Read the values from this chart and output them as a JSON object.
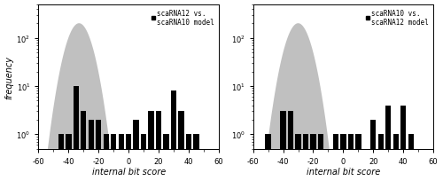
{
  "left_panel": {
    "title_line1": "scaRNA12 vs.",
    "title_line2": "scaRNA10 model",
    "bar_centers": [
      -45,
      -40,
      -35,
      -30,
      -25,
      -20,
      -15,
      -10,
      -5,
      0,
      5,
      10,
      15,
      20,
      25,
      30,
      35,
      40,
      45
    ],
    "bar_values": [
      1,
      1,
      10,
      3,
      2,
      2,
      1,
      1,
      1,
      1,
      2,
      1,
      3,
      3,
      1,
      8,
      3,
      1,
      1
    ],
    "gray_peak": -33,
    "gray_sigma": 6,
    "gray_amplitude": 200
  },
  "right_panel": {
    "title_line1": "scaRNA10 vs.",
    "title_line2": "scaRNA12 model",
    "bar_centers": [
      -50,
      -40,
      -35,
      -30,
      -25,
      -20,
      -15,
      -5,
      0,
      5,
      10,
      20,
      25,
      30,
      35,
      40,
      45
    ],
    "bar_values": [
      1,
      3,
      3,
      1,
      1,
      1,
      1,
      1,
      1,
      1,
      1,
      2,
      1,
      4,
      1,
      4,
      1
    ],
    "gray_peak": -30,
    "gray_sigma": 6,
    "gray_amplitude": 200
  },
  "ylabel": "frequency",
  "xlabel": "internal bit score",
  "xlim": [
    -60,
    60
  ],
  "ylim_log": [
    0.5,
    500
  ],
  "xticks": [
    -60,
    -40,
    -20,
    0,
    20,
    40,
    60
  ],
  "bar_color": "#000000",
  "gray_color": "#c0c0c0",
  "bg_color": "#ffffff",
  "fontsize_label": 7,
  "fontsize_tick": 6,
  "fontsize_legend": 5.5
}
